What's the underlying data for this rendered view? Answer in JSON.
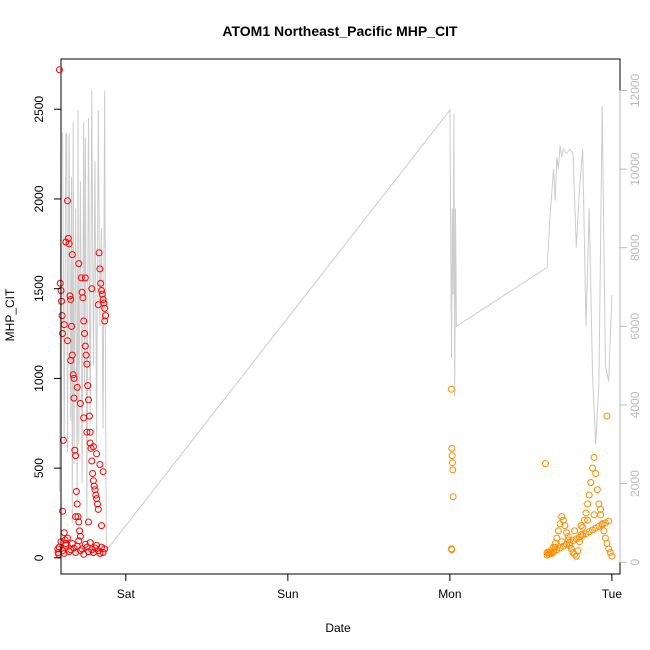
{
  "chart_data": {
    "type": "scatter",
    "title": "ATOM1 Northeast_Pacific MHP_CIT",
    "xlabel": "Date",
    "ylabel": "MHP_CIT",
    "x_ticks": [
      "Sat",
      "Sun",
      "Mon",
      "Tue"
    ],
    "x_tick_values": [
      1.0,
      2.0,
      3.0,
      4.0
    ],
    "xlim": [
      0.6,
      4.05
    ],
    "ylim": [
      -90,
      2780
    ],
    "y_ticks": [
      0,
      500,
      1000,
      1500,
      2000,
      2500
    ],
    "y2lim": [
      -300,
      12800
    ],
    "y2_ticks": [
      0,
      2000,
      4000,
      6000,
      8000,
      10000,
      12000
    ],
    "colors": {
      "series1": "#ff0000",
      "series2": "#ff8c00",
      "secondary_line": "#cccccc",
      "secondary_axis": "#bbbbbb"
    },
    "scatter_series": [
      {
        "color": "#ff0000",
        "x": [
          0.59,
          0.595,
          0.6,
          0.603,
          0.607,
          0.61,
          0.615,
          0.62,
          0.625,
          0.63,
          0.64,
          0.645,
          0.65,
          0.655,
          0.66,
          0.665,
          0.67,
          0.675,
          0.68,
          0.685,
          0.69,
          0.695,
          0.7,
          0.705,
          0.71,
          0.715,
          0.72,
          0.725,
          0.73,
          0.735,
          0.74,
          0.745,
          0.75,
          0.755,
          0.76,
          0.765,
          0.77,
          0.775,
          0.78,
          0.785,
          0.79,
          0.795,
          0.8,
          0.805,
          0.81,
          0.815,
          0.82,
          0.825,
          0.83,
          0.835,
          0.84,
          0.845,
          0.85,
          0.855,
          0.86,
          0.865,
          0.87,
          0.875,
          0.58,
          0.582,
          0.585,
          0.59,
          0.6,
          0.61,
          0.62,
          0.63,
          0.64,
          0.65,
          0.66,
          0.67,
          0.68,
          0.69,
          0.7,
          0.71,
          0.72,
          0.73,
          0.74,
          0.75,
          0.76,
          0.77,
          0.78,
          0.79,
          0.8,
          0.81,
          0.82,
          0.83,
          0.84,
          0.85,
          0.86,
          0.87,
          0.62,
          0.64,
          0.66,
          0.68,
          0.7,
          0.72,
          0.74,
          0.76,
          0.78,
          0.8,
          0.82,
          0.84,
          0.86,
          0.63,
          0.67,
          0.71,
          0.75,
          0.79,
          0.83,
          0.87,
          0.61,
          0.69,
          0.77,
          0.85
        ],
        "y": [
          2720,
          1530,
          1490,
          1430,
          1350,
          1250,
          655,
          140,
          100,
          80,
          1990,
          1780,
          1750,
          1460,
          1440,
          1290,
          1130,
          1020,
          890,
          600,
          570,
          370,
          300,
          230,
          200,
          150,
          120,
          1560,
          1480,
          1450,
          1320,
          1250,
          1180,
          1130,
          1080,
          960,
          880,
          790,
          700,
          610,
          540,
          470,
          430,
          400,
          380,
          350,
          330,
          300,
          270,
          1700,
          1610,
          1530,
          1490,
          1470,
          1440,
          1420,
          1390,
          1350,
          50,
          30,
          20,
          60,
          90,
          40,
          25,
          70,
          110,
          35,
          45,
          80,
          55,
          30,
          65,
          95,
          40,
          50,
          20,
          75,
          60,
          35,
          85,
          45,
          30,
          55,
          70,
          40,
          25,
          60,
          30,
          50,
          1300,
          1210,
          1100,
          1000,
          950,
          860,
          780,
          700,
          640,
          620,
          580,
          520,
          480,
          1760,
          1690,
          1640,
          1560,
          1500,
          1410,
          1320,
          260,
          230,
          200,
          180
        ],
        "note": ""
      },
      {
        "color": "#ff8c00",
        "x": [
          3.01,
          3.012,
          3.014,
          3.016,
          3.018,
          3.02,
          3.01,
          3.012,
          3.59,
          3.6,
          3.61,
          3.62,
          3.63,
          3.64,
          3.65,
          3.66,
          3.67,
          3.68,
          3.69,
          3.7,
          3.71,
          3.72,
          3.73,
          3.74,
          3.75,
          3.76,
          3.77,
          3.78,
          3.79,
          3.8,
          3.81,
          3.82,
          3.83,
          3.84,
          3.85,
          3.86,
          3.87,
          3.88,
          3.89,
          3.9,
          3.91,
          3.92,
          3.93,
          3.94,
          3.95,
          3.96,
          3.97,
          3.98,
          3.99,
          4.0,
          3.6,
          3.62,
          3.64,
          3.66,
          3.68,
          3.7,
          3.72,
          3.74,
          3.76,
          3.78,
          3.8,
          3.82,
          3.84,
          3.86,
          3.88,
          3.9,
          3.92,
          3.94,
          3.96,
          3.98,
          3.61,
          3.65,
          3.69,
          3.73,
          3.77,
          3.81,
          3.85,
          3.89,
          3.93,
          3.97
        ],
        "y": [
          940,
          610,
          570,
          530,
          490,
          340,
          50,
          45,
          525,
          30,
          20,
          40,
          25,
          60,
          80,
          110,
          150,
          190,
          230,
          210,
          180,
          140,
          100,
          70,
          50,
          30,
          20,
          10,
          40,
          90,
          130,
          170,
          210,
          250,
          300,
          350,
          420,
          500,
          560,
          470,
          380,
          300,
          240,
          190,
          150,
          110,
          80,
          50,
          30,
          10,
          15,
          25,
          35,
          45,
          55,
          65,
          75,
          85,
          95,
          105,
          115,
          125,
          135,
          145,
          155,
          165,
          175,
          185,
          195,
          205,
          30,
          60,
          90,
          120,
          150,
          180,
          210,
          240,
          270,
          790
        ],
        "note": ""
      }
    ],
    "secondary_line": {
      "color": "#cccccc",
      "x": [
        0.59,
        0.6,
        0.61,
        0.62,
        0.63,
        0.635,
        0.64,
        0.645,
        0.65,
        0.66,
        0.665,
        0.67,
        0.675,
        0.68,
        0.69,
        0.7,
        0.705,
        0.71,
        0.72,
        0.73,
        0.74,
        0.745,
        0.75,
        0.76,
        0.77,
        0.78,
        0.79,
        0.8,
        0.81,
        0.82,
        0.83,
        0.84,
        0.85,
        0.86,
        0.87,
        0.875,
        0.88,
        3.0,
        3.01,
        3.015,
        3.02,
        3.025,
        3.03,
        3.035,
        3.04,
        3.6,
        3.62,
        3.64,
        3.65,
        3.66,
        3.67,
        3.68,
        3.69,
        3.7,
        3.72,
        3.74,
        3.76,
        3.78,
        3.8,
        3.82,
        3.84,
        3.86,
        3.88,
        3.9,
        3.92,
        3.94,
        3.96,
        3.98,
        4.0
      ],
      "y": [
        1800,
        10900,
        10900,
        3000,
        10900,
        10900,
        2800,
        8000,
        10900,
        3600,
        9800,
        1000,
        11200,
        2500,
        9000,
        1500,
        11500,
        3000,
        9700,
        2000,
        11200,
        4500,
        10800,
        1000,
        11300,
        3500,
        12000,
        5000,
        10200,
        3000,
        11500,
        6000,
        8500,
        3400,
        12000,
        4000,
        300,
        11500,
        5200,
        9000,
        6800,
        11400,
        4200,
        9000,
        6000,
        7500,
        8900,
        10000,
        9200,
        10300,
        10000,
        10600,
        10300,
        10500,
        10400,
        10500,
        10400,
        8000,
        9500,
        10500,
        6000,
        9000,
        4800,
        3000,
        4500,
        11600,
        5000,
        4600,
        6800
      ]
    }
  }
}
